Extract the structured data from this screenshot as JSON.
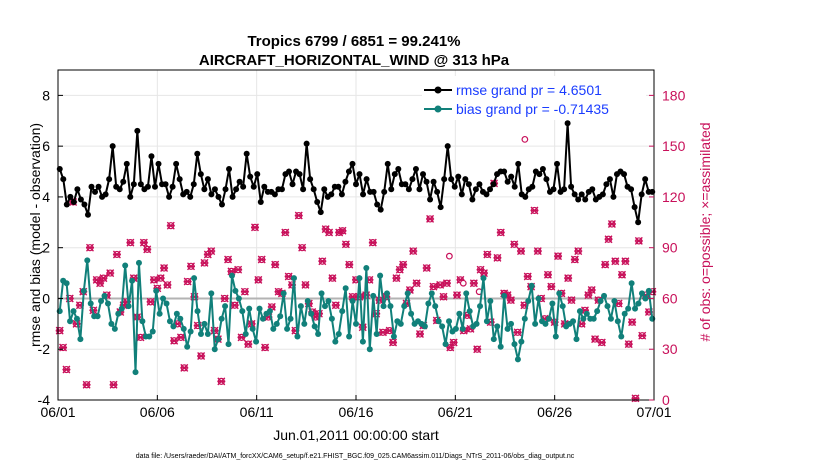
{
  "chart_data": {
    "type": "line",
    "title_line1": "Tropics 6799 / 6851 = 99.241%",
    "title_line2": "AIRCRAFT_HORIZONTAL_WIND @ 313 hPa",
    "ylabel": "rmse and bias (model - observation)",
    "ylabel_right": "# of obs: o=possible; ×=assimilated",
    "xlabel": "Jun.01,2011 00:00:00 start",
    "footer": "data file: /Users/raeder/DAI/ATM_forcXX/CAM6_setup/f.e21.FHIST_BGC.f09_025.CAM6assim.011/Diags_NTrS_2011-06/obs_diag_output.nc",
    "x_range": [
      0,
      30
    ],
    "ylim": [
      -4,
      9
    ],
    "ylim_right": [
      0,
      195
    ],
    "x_ticks": [
      {
        "v": 0,
        "label": "06/01"
      },
      {
        "v": 5,
        "label": "06/06"
      },
      {
        "v": 10,
        "label": "06/11"
      },
      {
        "v": 15,
        "label": "06/16"
      },
      {
        "v": 20,
        "label": "06/21"
      },
      {
        "v": 25,
        "label": "06/26"
      },
      {
        "v": 30,
        "label": "07/01"
      }
    ],
    "y_ticks": [
      {
        "v": -4,
        "label": "-4"
      },
      {
        "v": -2,
        "label": "-2"
      },
      {
        "v": 0,
        "label": "0"
      },
      {
        "v": 2,
        "label": "2"
      },
      {
        "v": 4,
        "label": "4"
      },
      {
        "v": 6,
        "label": "6"
      },
      {
        "v": 8,
        "label": "8"
      }
    ],
    "y_ticks_right": [
      {
        "v": 0,
        "label": "0"
      },
      {
        "v": 30,
        "label": "30"
      },
      {
        "v": 60,
        "label": "60"
      },
      {
        "v": 90,
        "label": "90"
      },
      {
        "v": 120,
        "label": "120"
      },
      {
        "v": 150,
        "label": "150"
      },
      {
        "v": 180,
        "label": "180"
      }
    ],
    "series": [
      {
        "name": "rmse grand pr = 4.6501",
        "color": "#000000",
        "values": [
          5.1,
          4.7,
          3.7,
          4.0,
          3.8,
          4.3,
          3.9,
          3.7,
          3.3,
          4.4,
          4.2,
          4.4,
          4.0,
          4.1,
          4.7,
          6.0,
          4.4,
          4.3,
          4.6,
          5.3,
          4.0,
          4.5,
          6.6,
          4.5,
          4.3,
          4.4,
          5.6,
          4.4,
          5.3,
          4.5,
          4.5,
          4.0,
          4.4,
          5.3,
          4.7,
          4.1,
          4.2,
          4.0,
          4.5,
          5.7,
          4.9,
          4.3,
          4.7,
          4.1,
          4.3,
          4.0,
          3.7,
          4.3,
          5.1,
          4.0,
          4.3,
          4.6,
          4.4,
          5.7,
          4.8,
          4.4,
          4.9,
          3.8,
          4.4,
          4.2,
          4.2,
          4.1,
          4.3,
          4.3,
          4.9,
          5.0,
          4.5,
          5.0,
          4.9,
          4.3,
          6.1,
          4.7,
          4.3,
          3.8,
          3.4,
          4.3,
          4.0,
          4.1,
          4.4,
          4.4,
          4.1,
          4.6,
          5.0,
          5.3,
          4.5,
          4.9,
          4.1,
          4.7,
          4.2,
          4.2,
          3.7,
          3.5,
          4.2,
          5.3,
          4.3,
          4.9,
          5.1,
          4.5,
          4.5,
          4.3,
          4.7,
          5.1,
          4.3,
          4.9,
          4.6,
          3.9,
          4.6,
          4.2,
          3.6,
          4.7,
          6.0,
          4.7,
          4.4,
          4.8,
          4.1,
          4.7,
          4.5,
          3.9,
          4.3,
          4.5,
          4.2,
          4.1,
          4.3,
          4.5,
          4.9,
          5.0,
          5.0,
          4.6,
          4.8,
          4.4,
          5.3,
          4.1,
          4.0,
          4.3,
          4.4,
          5.0,
          4.9,
          5.1,
          4.7,
          4.2,
          4.3,
          5.3,
          4.2,
          4.3,
          6.9,
          4.4,
          4.1,
          3.9,
          4.1,
          3.9,
          4.2,
          4.3,
          3.9,
          4.0,
          4.1,
          4.5,
          4.7,
          4.0,
          4.9,
          5.0,
          4.9,
          4.4,
          4.3,
          3.6,
          3.0,
          4.1,
          4.7,
          4.2,
          4.2
        ]
      },
      {
        "name": "bias grand pr = -0.71435",
        "color": "#11807a",
        "values": [
          -0.5,
          0.7,
          0.6,
          -0.9,
          -0.5,
          -0.8,
          -1.6,
          0.3,
          1.5,
          -0.2,
          -0.7,
          -0.7,
          -0.1,
          0.1,
          -0.2,
          -1.0,
          -1.2,
          -0.6,
          -0.4,
          1.3,
          -0.3,
          0.7,
          -2.9,
          1.4,
          -0.9,
          -1.5,
          -1.5,
          -1.3,
          0.3,
          -0.6,
          0.0,
          -0.2,
          -0.9,
          -1.1,
          -0.6,
          -0.8,
          -1.2,
          -1.9,
          -1.3,
          0.8,
          -0.5,
          -1.4,
          -1.0,
          -1.4,
          0.2,
          -2.0,
          -1.6,
          -0.8,
          -0.3,
          -1.8,
          0.9,
          0.3,
          0.0,
          -0.5,
          -1.4,
          -0.4,
          -1.2,
          -1.7,
          -0.4,
          -0.8,
          -0.6,
          -0.5,
          -1.2,
          -1.0,
          -0.7,
          0.2,
          -1.2,
          -0.8,
          0.8,
          -1.5,
          -0.3,
          -1.0,
          -0.1,
          -0.6,
          -1.1,
          -1.4,
          0.2,
          -0.3,
          -0.1,
          -0.8,
          -1.7,
          -1.4,
          -0.5,
          0.4,
          -1.5,
          -0.1,
          -1.0,
          0.8,
          -1.7,
          1.2,
          -2.0,
          0.1,
          -1.4,
          0.9,
          -0.3,
          0.2,
          -0.3,
          -1.5,
          -0.9,
          -1.0,
          -0.3,
          0.2,
          -0.6,
          -1.0,
          -0.9,
          -1.0,
          -1.1,
          -0.2,
          0.2,
          -0.3,
          -0.9,
          -1.1,
          -1.8,
          -0.9,
          -1.3,
          -1.2,
          -0.6,
          -1.2,
          0.2,
          -0.5,
          -1.1,
          -1.0,
          -0.3,
          0.8,
          -0.9,
          -0.1,
          -1.6,
          -1.1,
          -1.9,
          0.1,
          -1.2,
          -1.0,
          -1.8,
          -2.4,
          -1.7,
          -0.8,
          -0.1,
          0.5,
          -1.0,
          0.0,
          -0.9,
          -1.0,
          -0.8,
          -0.2,
          -1.5,
          0.2,
          -0.3,
          -1.1,
          -1.0,
          -0.9,
          -1.6,
          -0.5,
          -0.8,
          -0.6,
          -0.8,
          -0.8,
          -0.5,
          -0.1,
          0.1,
          -0.3,
          -0.8,
          -0.1,
          -0.9,
          -1.5,
          -0.6,
          -0.4,
          0.6,
          -0.4,
          -0.2,
          0.2,
          0.0,
          0.3,
          -0.8
        ]
      },
      {
        "name": "obs assimilated",
        "color": "#c8105a",
        "values": [
          41,
          31,
          18,
          60,
          117,
          45,
          56,
          64,
          9,
          90,
          53,
          71,
          69,
          72,
          62,
          75,
          9,
          86,
          52,
          56,
          58,
          93,
          72,
          49,
          37,
          93,
          89,
          58,
          71,
          66,
          72,
          78,
          68,
          103,
          35,
          45,
          37,
          19,
          70,
          79,
          61,
          44,
          26,
          81,
          86,
          88,
          41,
          36,
          11,
          60,
          83,
          76,
          56,
          77,
          37,
          64,
          33,
          45,
          102,
          71,
          83,
          31,
          49,
          55,
          80,
          64,
          63,
          99,
          73,
          68,
          41,
          109,
          90,
          68,
          57,
          52,
          49,
          51,
          82,
          101,
          99,
          72,
          56,
          99,
          100,
          92,
          80,
          61,
          71,
          61,
          43,
          62,
          71,
          93,
          51,
          59,
          40,
          61,
          41,
          34,
          72,
          77,
          80,
          57,
          65,
          88,
          69,
          39,
          44,
          78,
          107,
          67,
          47,
          68,
          61,
          69,
          31,
          34,
          62,
          71,
          41,
          50,
          42,
          69,
          30,
          77,
          75,
          86,
          46,
          128,
          84,
          99,
          63,
          62,
          59,
          92,
          40,
          88,
          56,
          73,
          67,
          112,
          88,
          60,
          48,
          74,
          67,
          46,
          85,
          63,
          45,
          72,
          59,
          83,
          88,
          45,
          53,
          62,
          65,
          36,
          59,
          34,
          80,
          95,
          104,
          82,
          57,
          74,
          82,
          33,
          46,
          1,
          94,
          38,
          62,
          52,
          64
        ]
      }
    ],
    "obs_possible_notes": [
      {
        "x": 23.5,
        "value": 154
      },
      {
        "x": 19.7,
        "value": 85
      },
      {
        "x": 20.4,
        "value": 69
      },
      {
        "x": 21.2,
        "value": 64
      }
    ]
  }
}
